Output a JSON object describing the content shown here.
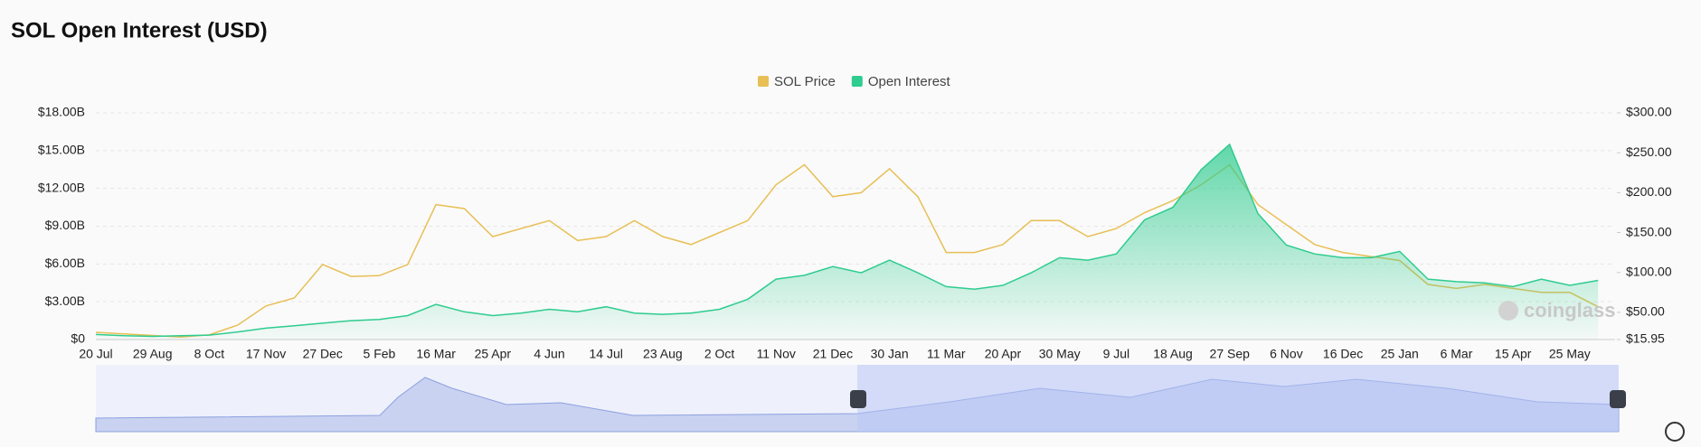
{
  "chart_data": {
    "type": "line",
    "title": "SOL Open Interest (USD)",
    "watermark": "coinglass",
    "categories": [
      "20 Jul",
      null,
      "29 Aug",
      null,
      "8 Oct",
      null,
      "17 Nov",
      null,
      "27 Dec",
      null,
      "5 Feb",
      null,
      "16 Mar",
      null,
      "25 Apr",
      null,
      "4 Jun",
      null,
      "14 Jul",
      null,
      "23 Aug",
      null,
      "2 Oct",
      null,
      "11 Nov",
      null,
      "21 Dec",
      null,
      "30 Jan",
      null,
      "11 Mar",
      null,
      "20 Apr",
      null,
      "30 May",
      null,
      "9 Jul",
      null,
      "18 Aug",
      null,
      "27 Sep",
      null,
      "6 Nov",
      null,
      "16 Dec",
      null,
      "25 Jan",
      null,
      "6 Mar",
      null,
      "15 Apr",
      null,
      "25 May",
      null
    ],
    "series": [
      {
        "name": "SOL Price",
        "color": "#e8bf55",
        "axis": "y2",
        "values": [
          25,
          23,
          21,
          19,
          22,
          34,
          58,
          68,
          110,
          95,
          96,
          110,
          185,
          180,
          145,
          155,
          165,
          140,
          145,
          165,
          145,
          135,
          150,
          165,
          210,
          235,
          195,
          200,
          230,
          195,
          125,
          125,
          135,
          165,
          165,
          145,
          155,
          175,
          190,
          210,
          235,
          185,
          160,
          135,
          125,
          120,
          115,
          85,
          80,
          85,
          80,
          75,
          75,
          57
        ]
      },
      {
        "name": "Open Interest",
        "color": "#2ecc8f",
        "values": [
          400000000,
          300000000,
          250000000,
          300000000,
          350000000,
          600000000,
          900000000,
          1100000000,
          1300000000,
          1500000000,
          1600000000,
          1900000000,
          2800000000,
          2200000000,
          1900000000,
          2100000000,
          2400000000,
          2200000000,
          2600000000,
          2100000000,
          2000000000,
          2100000000,
          2400000000,
          3200000000,
          4800000000,
          5100000000,
          5800000000,
          5300000000,
          6300000000,
          5300000000,
          4200000000,
          4000000000,
          4300000000,
          5300000000,
          6500000000,
          6300000000,
          6800000000,
          9500000000,
          10500000000,
          13500000000,
          15500000000,
          10000000000,
          7500000000,
          6800000000,
          6500000000,
          6500000000,
          7000000000,
          4800000000,
          4600000000,
          4500000000,
          4200000000,
          4800000000,
          4300000000,
          4700000000
        ]
      }
    ],
    "ylim": [
      0,
      18000000000
    ],
    "yticks": [
      {
        "value": 0,
        "label": "$0"
      },
      {
        "value": 3000000000,
        "label": "$3.00B"
      },
      {
        "value": 6000000000,
        "label": "$6.00B"
      },
      {
        "value": 9000000000,
        "label": "$9.00B"
      },
      {
        "value": 12000000000,
        "label": "$12.00B"
      },
      {
        "value": 15000000000,
        "label": "$15.00B"
      },
      {
        "value": 18000000000,
        "label": "$18.00B"
      }
    ],
    "y2lim": [
      15.95,
      300
    ],
    "y2ticks": [
      {
        "value": 15.95,
        "label": "$15.95"
      },
      {
        "value": 50,
        "label": "$50.00"
      },
      {
        "value": 100,
        "label": "$100.00"
      },
      {
        "value": 150,
        "label": "$150.00"
      },
      {
        "value": 200,
        "label": "$200.00"
      },
      {
        "value": 250,
        "label": "$250.00"
      },
      {
        "value": 300,
        "label": "$300.00"
      }
    ],
    "grid": true,
    "legend": "top"
  }
}
